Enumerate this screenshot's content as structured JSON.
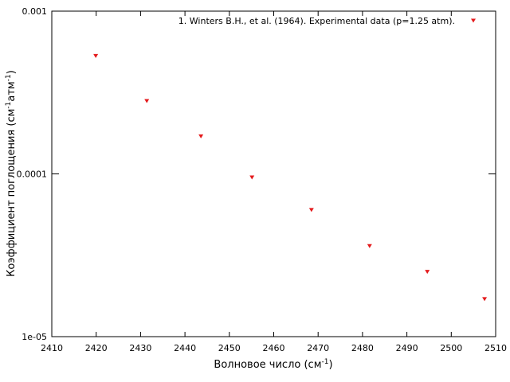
{
  "chart_data": {
    "type": "scatter",
    "xlabel": [
      "Волновое число (см",
      "-1",
      ")"
    ],
    "ylabel": [
      "Коэффициент поглощения (см",
      "-1",
      "атм",
      "-1",
      ")"
    ],
    "x": [
      2419.9,
      2431.4,
      2443.6,
      2455.1,
      2468.5,
      2481.6,
      2494.6,
      2507.5
    ],
    "series": [
      {
        "name": "1. Winters B.H., et al. (1964). Experimental data (p=1.25 atm).",
        "color": "#e41a1c",
        "values": [
          0.00053,
          0.00028,
          0.00017,
          9.5e-05,
          6e-05,
          3.6e-05,
          2.5e-05,
          1.7e-05
        ]
      }
    ],
    "xlim": [
      2410,
      2510
    ],
    "xticks": [
      2410,
      2420,
      2430,
      2440,
      2450,
      2460,
      2470,
      2480,
      2490,
      2500,
      2510
    ],
    "ylim": [
      1e-05,
      0.001
    ],
    "yticks": [
      {
        "value": 1e-05,
        "label": "1e-05"
      },
      0.0001,
      0.001
    ],
    "yscale": "log",
    "grid": false,
    "legend": "upper right"
  }
}
